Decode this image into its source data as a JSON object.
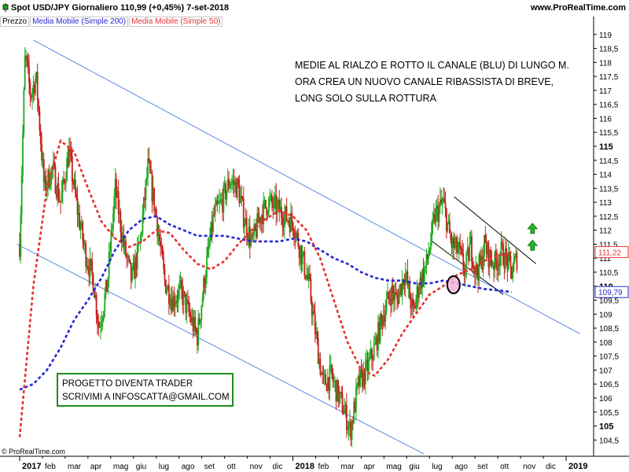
{
  "header": {
    "symbol_line": "Spot USD/JPY   Giornaliero   110,99 (+0,45%)   7-set-2018",
    "site": "www.ProRealTime.com"
  },
  "legend": {
    "price": "Prezzo",
    "ma200": "Media Mobile (Simple 200)",
    "ma50": "Media Mobile (Simple 50)"
  },
  "annotation": {
    "line1": "MEDIE AL RIALZO E ROTTO IL CANALE (BLU) DI LUNGO M.",
    "line2": "ORA CREA UN NUOVO CANALE RIBASSISTA DI BREVE,",
    "line3": "LONG SOLO SULLA ROTTURA"
  },
  "promo": {
    "line1": "PROGETTO DIVENTA TRADER",
    "line2": "SCRIVIMI A INFOSCATTA@GMAIL.COM"
  },
  "copyright": "© ProRealTime.com",
  "colors": {
    "up_candle": "#1ea81e",
    "down_candle": "#c81e1e",
    "ma200": "#2828d2",
    "ma50": "#e63232",
    "channel": "#5a8cdc",
    "short_channel": "#000000",
    "arrow": "#28b428"
  },
  "chart_data": {
    "type": "candlestick",
    "instrument": "Spot USD/JPY",
    "timeframe": "Giornaliero",
    "last_price": "110,99",
    "change": "+0,45%",
    "date": "7-set-2018",
    "ylim": [
      104.2,
      119.5
    ],
    "y_ticks": [
      "119",
      "118,5",
      "118",
      "117,5",
      "117",
      "116,5",
      "116",
      "115,5",
      "115",
      "114,5",
      "114",
      "113,5",
      "113",
      "112,5",
      "112",
      "111,5",
      "111",
      "110,5",
      "110",
      "109,5",
      "109",
      "108,5",
      "108",
      "107,5",
      "107",
      "106,5",
      "106",
      "105,5",
      "105",
      "104,5"
    ],
    "y_ticks_bold": [
      "115",
      "110",
      "105"
    ],
    "x_ticks": [
      "2017",
      "feb",
      "mar",
      "apr",
      "mag",
      "giu",
      "lug",
      "ago",
      "set",
      "ott",
      "nov",
      "dic",
      "2018",
      "feb",
      "mar",
      "apr",
      "mag",
      "giu",
      "lug",
      "ago",
      "set",
      "ott",
      "nov",
      "dic",
      "2019"
    ],
    "x_ticks_bold": [
      "2017",
      "2018",
      "2019"
    ],
    "price_markers": [
      {
        "label": "111,22",
        "value": 111.22,
        "color": "#e63232"
      },
      {
        "label": "109,79",
        "value": 109.79,
        "color": "#2828d2"
      }
    ],
    "price_path": [
      [
        2017.0,
        111.5
      ],
      [
        2017.02,
        118.3
      ],
      [
        2017.04,
        116.8
      ],
      [
        2017.06,
        117.5
      ],
      [
        2017.09,
        113.5
      ],
      [
        2017.12,
        114.2
      ],
      [
        2017.15,
        113.0
      ],
      [
        2017.18,
        114.8
      ],
      [
        2017.21,
        112.8
      ],
      [
        2017.24,
        111.2
      ],
      [
        2017.27,
        110.2
      ],
      [
        2017.29,
        108.5
      ],
      [
        2017.32,
        110.0
      ],
      [
        2017.35,
        113.5
      ],
      [
        2017.38,
        111.5
      ],
      [
        2017.41,
        110.2
      ],
      [
        2017.44,
        111.5
      ],
      [
        2017.47,
        114.3
      ],
      [
        2017.5,
        112.5
      ],
      [
        2017.53,
        110.2
      ],
      [
        2017.56,
        109.5
      ],
      [
        2017.59,
        109.8
      ],
      [
        2017.62,
        109.0
      ],
      [
        2017.65,
        108.2
      ],
      [
        2017.68,
        110.5
      ],
      [
        2017.71,
        112.5
      ],
      [
        2017.74,
        113.0
      ],
      [
        2017.77,
        113.8
      ],
      [
        2017.8,
        113.5
      ],
      [
        2017.82,
        112.5
      ],
      [
        2017.85,
        111.5
      ],
      [
        2017.88,
        112.5
      ],
      [
        2017.91,
        113.0
      ],
      [
        2017.94,
        112.8
      ],
      [
        2017.97,
        112.5
      ],
      [
        2018.0,
        112.3
      ],
      [
        2018.03,
        111.2
      ],
      [
        2018.06,
        110.0
      ],
      [
        2018.08,
        108.5
      ],
      [
        2018.11,
        106.5
      ],
      [
        2018.14,
        106.8
      ],
      [
        2018.17,
        106.0
      ],
      [
        2018.19,
        105.5
      ],
      [
        2018.21,
        104.8
      ],
      [
        2018.24,
        106.5
      ],
      [
        2018.27,
        107.0
      ],
      [
        2018.3,
        107.8
      ],
      [
        2018.33,
        109.0
      ],
      [
        2018.36,
        109.8
      ],
      [
        2018.38,
        109.5
      ],
      [
        2018.41,
        110.5
      ],
      [
        2018.44,
        109.0
      ],
      [
        2018.46,
        110.0
      ],
      [
        2018.49,
        110.8
      ],
      [
        2018.52,
        112.5
      ],
      [
        2018.55,
        113.0
      ],
      [
        2018.58,
        111.5
      ],
      [
        2018.61,
        111.2
      ],
      [
        2018.63,
        110.5
      ],
      [
        2018.65,
        111.5
      ],
      [
        2018.67,
        110.5
      ],
      [
        2018.69,
        110.8
      ],
      [
        2018.7,
        111.5
      ],
      [
        2018.72,
        111.0
      ],
      [
        2018.74,
        110.8
      ],
      [
        2018.76,
        111.2
      ],
      [
        2018.78,
        111.0
      ],
      [
        2018.8,
        110.5
      ],
      [
        2018.82,
        111.0
      ]
    ],
    "series": [
      {
        "name": "Media Mobile (Simple 200)",
        "style": "dotted",
        "points": [
          [
            2017.0,
            106.3
          ],
          [
            2017.05,
            106.5
          ],
          [
            2017.1,
            107.0
          ],
          [
            2017.15,
            107.8
          ],
          [
            2017.2,
            108.8
          ],
          [
            2017.25,
            109.5
          ],
          [
            2017.3,
            110.3
          ],
          [
            2017.35,
            111.3
          ],
          [
            2017.4,
            112.0
          ],
          [
            2017.45,
            112.4
          ],
          [
            2017.5,
            112.5
          ],
          [
            2017.55,
            112.2
          ],
          [
            2017.6,
            112.0
          ],
          [
            2017.65,
            111.8
          ],
          [
            2017.7,
            111.8
          ],
          [
            2017.75,
            111.8
          ],
          [
            2017.8,
            111.7
          ],
          [
            2017.85,
            111.6
          ],
          [
            2017.9,
            111.6
          ],
          [
            2017.95,
            111.6
          ],
          [
            2018.0,
            111.7
          ],
          [
            2018.05,
            111.6
          ],
          [
            2018.1,
            111.3
          ],
          [
            2018.15,
            111.0
          ],
          [
            2018.2,
            110.8
          ],
          [
            2018.25,
            110.5
          ],
          [
            2018.3,
            110.3
          ],
          [
            2018.35,
            110.2
          ],
          [
            2018.4,
            110.2
          ],
          [
            2018.45,
            110.1
          ],
          [
            2018.5,
            110.1
          ],
          [
            2018.55,
            110.2
          ],
          [
            2018.6,
            110.1
          ],
          [
            2018.65,
            110.0
          ],
          [
            2018.7,
            109.9
          ],
          [
            2018.75,
            109.85
          ],
          [
            2018.8,
            109.79
          ]
        ]
      },
      {
        "name": "Media Mobile (Simple 50)",
        "style": "dotted",
        "points": [
          [
            2017.0,
            104.6
          ],
          [
            2017.05,
            110.0
          ],
          [
            2017.1,
            113.5
          ],
          [
            2017.15,
            115.2
          ],
          [
            2017.2,
            114.8
          ],
          [
            2017.25,
            113.5
          ],
          [
            2017.3,
            112.3
          ],
          [
            2017.35,
            111.7
          ],
          [
            2017.4,
            111.4
          ],
          [
            2017.45,
            111.6
          ],
          [
            2017.5,
            112.0
          ],
          [
            2017.55,
            111.9
          ],
          [
            2017.6,
            111.3
          ],
          [
            2017.65,
            110.8
          ],
          [
            2017.7,
            110.6
          ],
          [
            2017.75,
            110.9
          ],
          [
            2017.8,
            111.5
          ],
          [
            2017.85,
            112.0
          ],
          [
            2017.9,
            112.4
          ],
          [
            2017.95,
            112.7
          ],
          [
            2018.0,
            112.5
          ],
          [
            2018.05,
            112.0
          ],
          [
            2018.1,
            111.0
          ],
          [
            2018.15,
            109.5
          ],
          [
            2018.2,
            108.0
          ],
          [
            2018.25,
            107.0
          ],
          [
            2018.3,
            106.8
          ],
          [
            2018.35,
            107.4
          ],
          [
            2018.4,
            108.3
          ],
          [
            2018.45,
            109.0
          ],
          [
            2018.5,
            109.7
          ],
          [
            2018.55,
            110.0
          ],
          [
            2018.6,
            110.4
          ],
          [
            2018.65,
            110.6
          ],
          [
            2018.7,
            110.9
          ],
          [
            2018.75,
            111.1
          ],
          [
            2018.8,
            111.22
          ]
        ]
      }
    ],
    "trendlines": [
      {
        "name": "channel-upper",
        "from": [
          2017.05,
          118.8
        ],
        "to": [
          2019.05,
          108.3
        ]
      },
      {
        "name": "channel-lower",
        "from": [
          2016.99,
          111.5
        ],
        "to": [
          2018.48,
          104.0
        ]
      },
      {
        "name": "short-channel-upper",
        "from": [
          2018.59,
          113.2
        ],
        "to": [
          2018.89,
          110.8
        ]
      },
      {
        "name": "short-channel-lower",
        "from": [
          2018.51,
          111.6
        ],
        "to": [
          2018.77,
          109.7
        ]
      }
    ]
  }
}
